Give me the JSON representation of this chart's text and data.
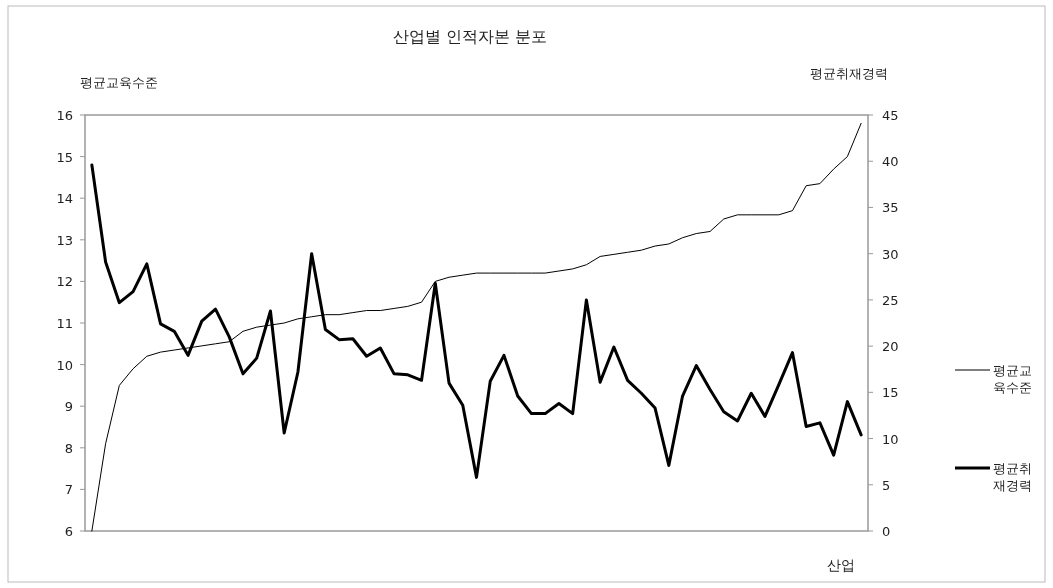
{
  "chart_data": {
    "type": "line",
    "title": "산업별 인적자본 분포",
    "xlabel": "산업",
    "ylabel": "평균교육수준",
    "y2label": "평균취재경력",
    "categories": [
      null,
      null,
      null,
      null,
      null,
      null,
      null,
      null,
      null,
      null,
      null,
      null,
      null,
      null,
      null,
      null,
      null,
      null,
      null,
      null,
      null,
      null,
      null,
      null,
      null,
      null,
      null,
      null,
      null,
      null,
      null,
      null,
      null,
      null,
      null,
      null,
      null,
      null,
      null,
      null,
      null,
      null,
      null,
      null,
      null,
      null,
      null,
      null,
      null,
      null,
      null,
      null,
      null,
      null,
      null,
      null,
      null
    ],
    "series": [
      {
        "name": "평균교육수준",
        "color": "#000000",
        "values": [
          6.0,
          8.1,
          9.5,
          9.9,
          10.2,
          10.3,
          10.35,
          10.4,
          10.45,
          10.5,
          10.55,
          10.8,
          10.9,
          10.95,
          11.0,
          11.1,
          11.15,
          11.2,
          11.2,
          11.25,
          11.3,
          11.3,
          11.35,
          11.4,
          11.5,
          12.0,
          12.1,
          12.15,
          12.2,
          12.2,
          12.2,
          12.2,
          12.2,
          12.2,
          12.25,
          12.3,
          12.4,
          12.6,
          12.65,
          12.7,
          12.75,
          12.85,
          12.9,
          13.05,
          13.15,
          13.2,
          13.5,
          13.6,
          13.6,
          13.6,
          13.6,
          13.7,
          14.3,
          14.35,
          14.7,
          15.0,
          15.8
        ]
      },
      {
        "name": "평균취재경력",
        "color": "#000000",
        "axis": "y2",
        "values": [
          39.6,
          29.1,
          24.7,
          25.9,
          28.9,
          22.4,
          21.6,
          19.0,
          22.7,
          24.0,
          21.0,
          17.0,
          18.7,
          23.8,
          10.6,
          17.2,
          30.0,
          21.8,
          20.7,
          20.8,
          18.9,
          19.8,
          17.0,
          16.9,
          16.3,
          26.8,
          16.0,
          13.6,
          5.8,
          16.2,
          19.0,
          14.6,
          12.7,
          12.7,
          13.8,
          12.7,
          25.0,
          16.1,
          19.9,
          16.3,
          14.9,
          13.3,
          7.1,
          14.6,
          17.9,
          15.3,
          12.9,
          11.9,
          14.9,
          12.4,
          15.8,
          19.3,
          11.3,
          11.7,
          8.2,
          14.0,
          10.4
        ]
      }
    ],
    "ylim": [
      6,
      16
    ],
    "yticks": [
      6,
      7,
      8,
      9,
      10,
      11,
      12,
      13,
      14,
      15,
      16
    ],
    "y2lim": [
      0,
      45
    ],
    "y2ticks": [
      0,
      5,
      10,
      15,
      20,
      25,
      30,
      35,
      40,
      45
    ],
    "legend": "right",
    "grid": false,
    "marker": "none",
    "line_style": "solid"
  }
}
